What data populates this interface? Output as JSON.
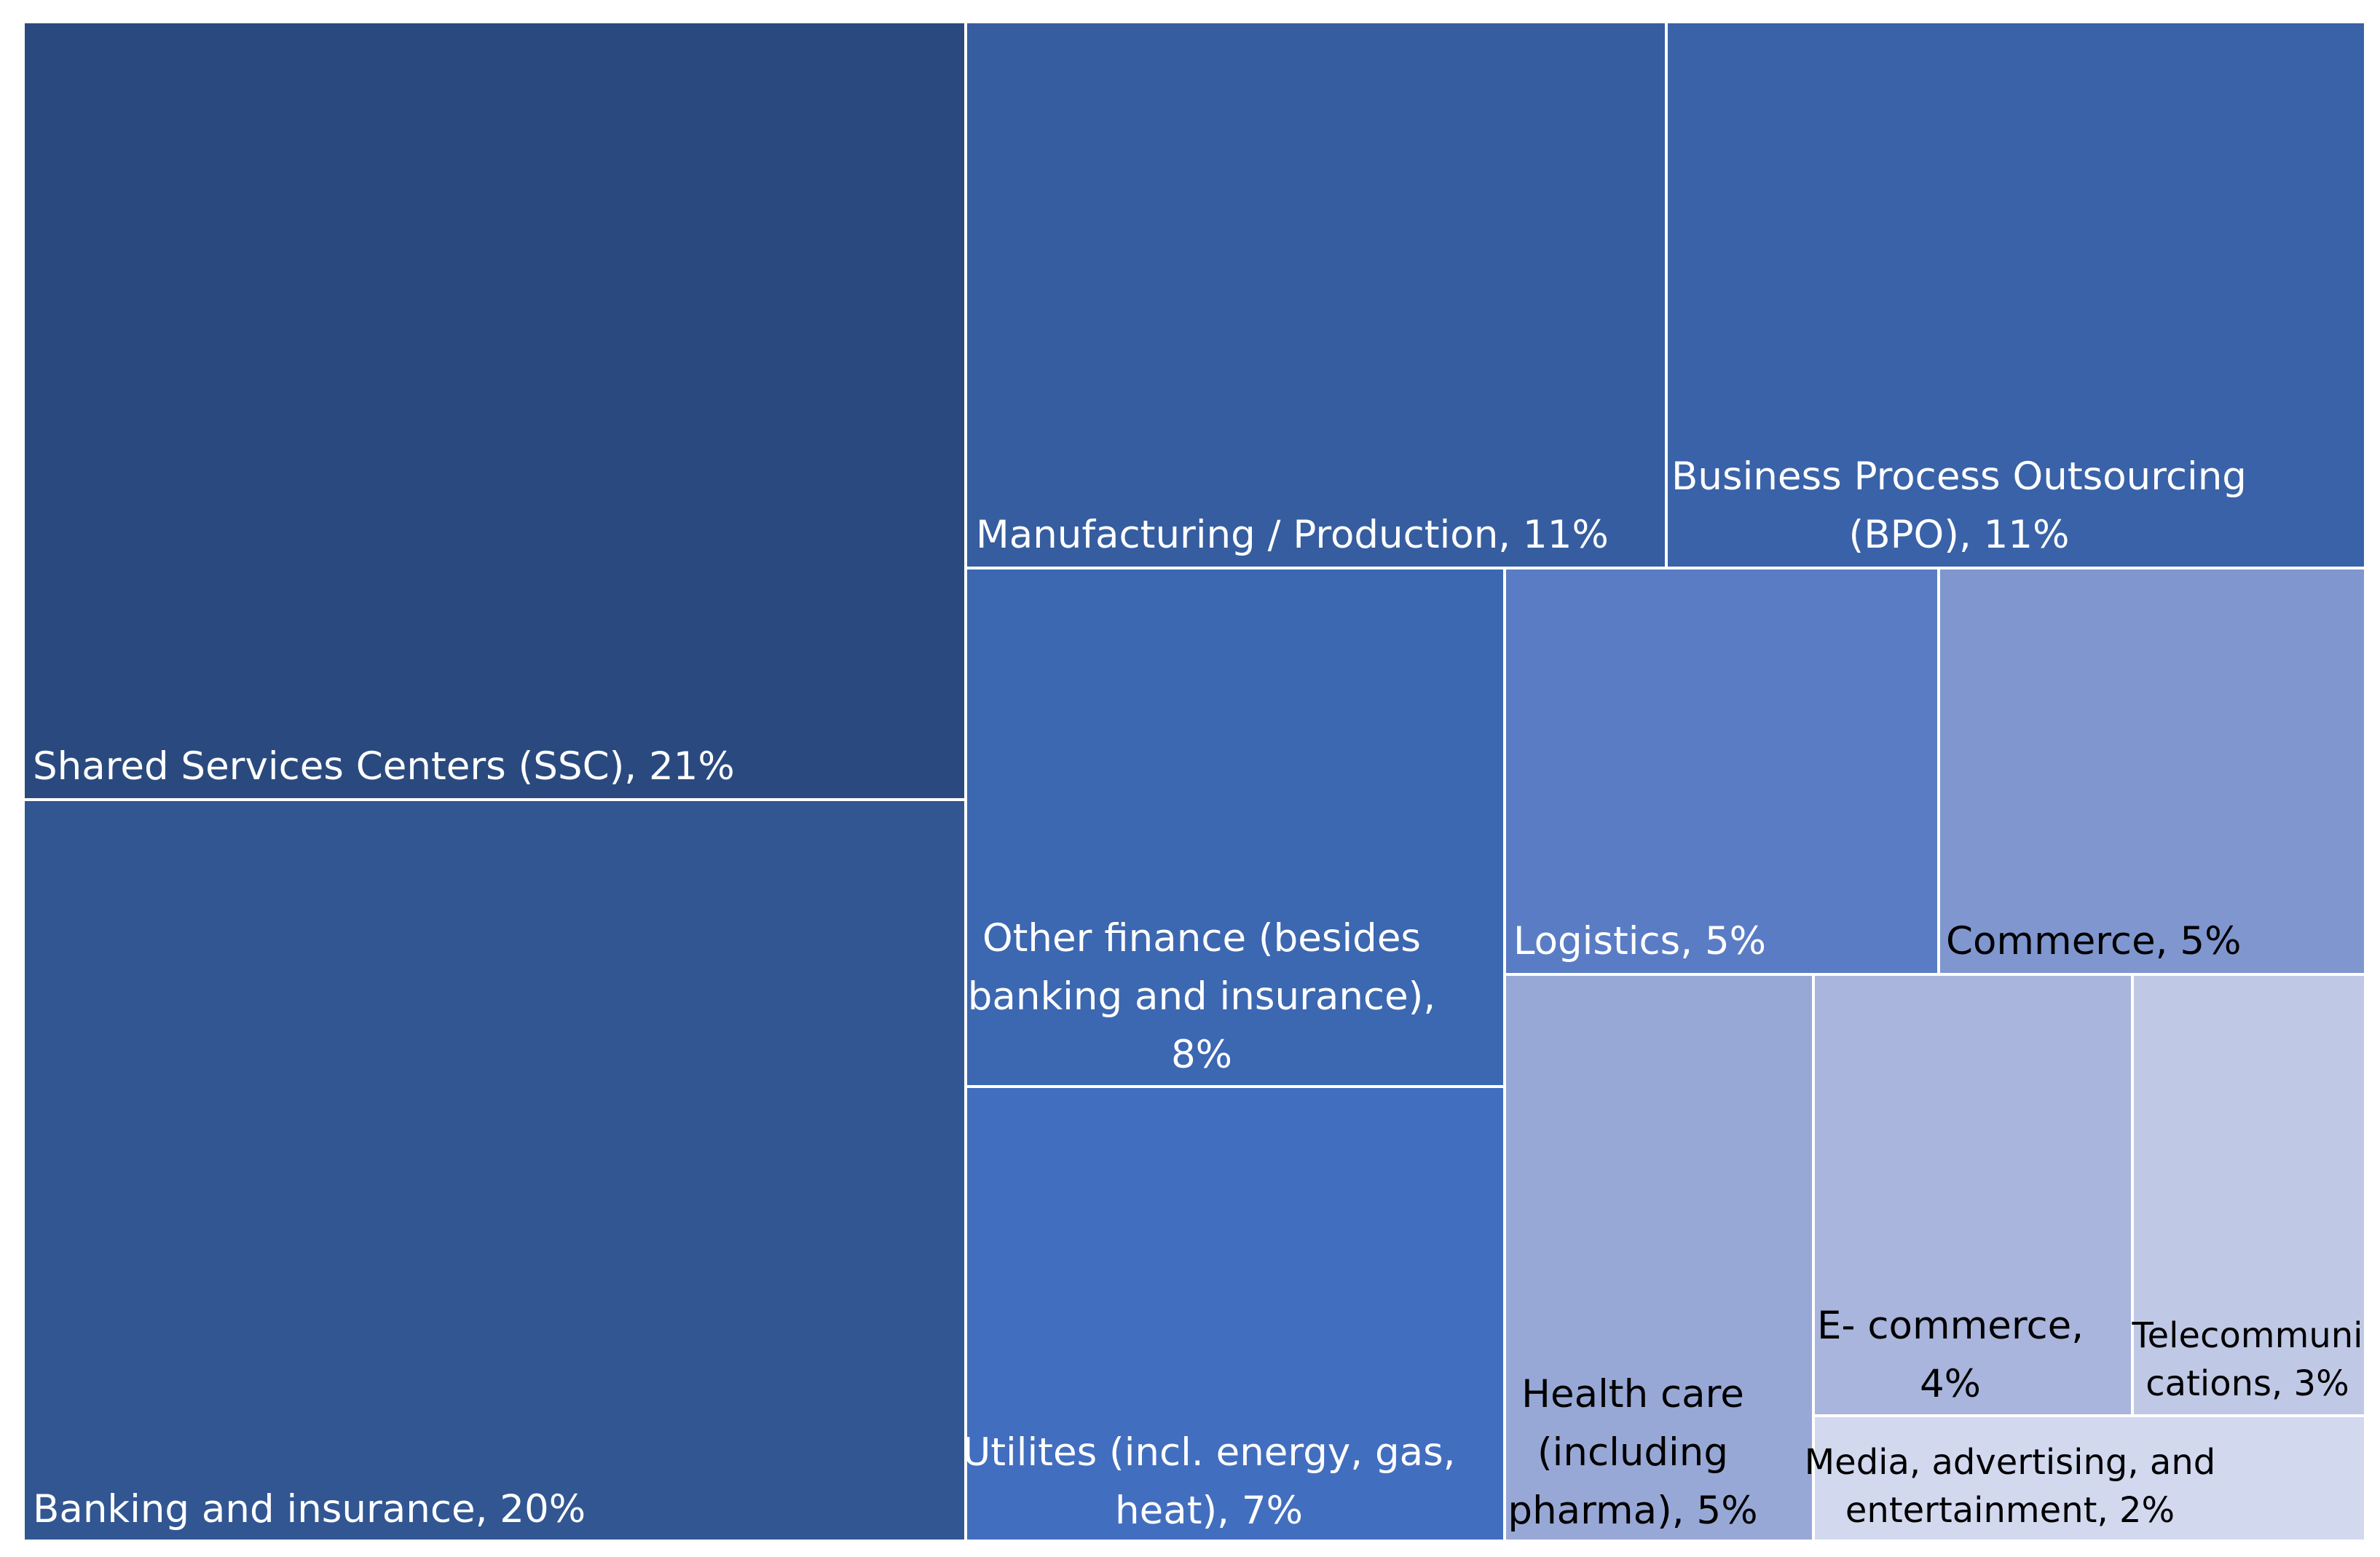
{
  "chart_data": {
    "type": "treemap",
    "unit": "%",
    "items": [
      {
        "id": "ssc",
        "label_lines": [
          "Shared Services Centers (SSC), 21%"
        ],
        "name": "Shared Services Centers (SSC)",
        "value": 21,
        "color": "#2a4a7f",
        "text_color": "#ffffff"
      },
      {
        "id": "banking",
        "label_lines": [
          "Banking and insurance, 20%"
        ],
        "name": "Banking and insurance",
        "value": 20,
        "color": "#325692",
        "text_color": "#ffffff"
      },
      {
        "id": "manufacturing",
        "label_lines": [
          "Manufacturing / Production, 11%"
        ],
        "name": "Manufacturing / Production",
        "value": 11,
        "color": "#365da0",
        "text_color": "#ffffff"
      },
      {
        "id": "bpo",
        "label_lines": [
          "Business Process Outsourcing",
          "(BPO), 11%"
        ],
        "name": "Business Process Outsourcing (BPO)",
        "value": 11,
        "color": "#3962a8",
        "text_color": "#ffffff"
      },
      {
        "id": "other_finance",
        "label_lines": [
          "Other finance (besides",
          "banking and insurance),",
          "8%"
        ],
        "name": "Other finance (besides banking and insurance)",
        "value": 8,
        "color": "#3c67b1",
        "text_color": "#ffffff"
      },
      {
        "id": "utilities",
        "label_lines": [
          "Utilites (incl. energy, gas,",
          "heat), 7%"
        ],
        "name": "Utilites (incl. energy, gas, heat)",
        "value": 7,
        "color": "#426ebf",
        "text_color": "#ffffff"
      },
      {
        "id": "logistics",
        "label_lines": [
          "Logistics, 5%"
        ],
        "name": "Logistics",
        "value": 5,
        "color": "#5a7cc5",
        "text_color": "#ffffff"
      },
      {
        "id": "commerce",
        "label_lines": [
          "Commerce, 5%"
        ],
        "name": "Commerce",
        "value": 5,
        "color": "#7f96cf",
        "text_color": "#000000"
      },
      {
        "id": "health",
        "label_lines": [
          "Health care",
          "(including",
          "pharma), 5%"
        ],
        "name": "Health care (including pharma)",
        "value": 5,
        "color": "#98a8d6",
        "text_color": "#000000"
      },
      {
        "id": "ecommerce",
        "label_lines": [
          "E- commerce,",
          "4%"
        ],
        "name": "E- commerce",
        "value": 4,
        "color": "#a9b5dc",
        "text_color": "#000000"
      },
      {
        "id": "telecom",
        "label_lines": [
          "Telecommuni",
          "cations, 3%"
        ],
        "name": "Telecommunications",
        "value": 3,
        "color": "#bfc8e5",
        "text_color": "#000000"
      },
      {
        "id": "media",
        "label_lines": [
          "Media, advertising, and",
          "entertainment, 2%"
        ],
        "name": "Media, advertising, and entertainment",
        "value": 2,
        "color": "#d2d8ee",
        "text_color": "#000000"
      }
    ]
  }
}
